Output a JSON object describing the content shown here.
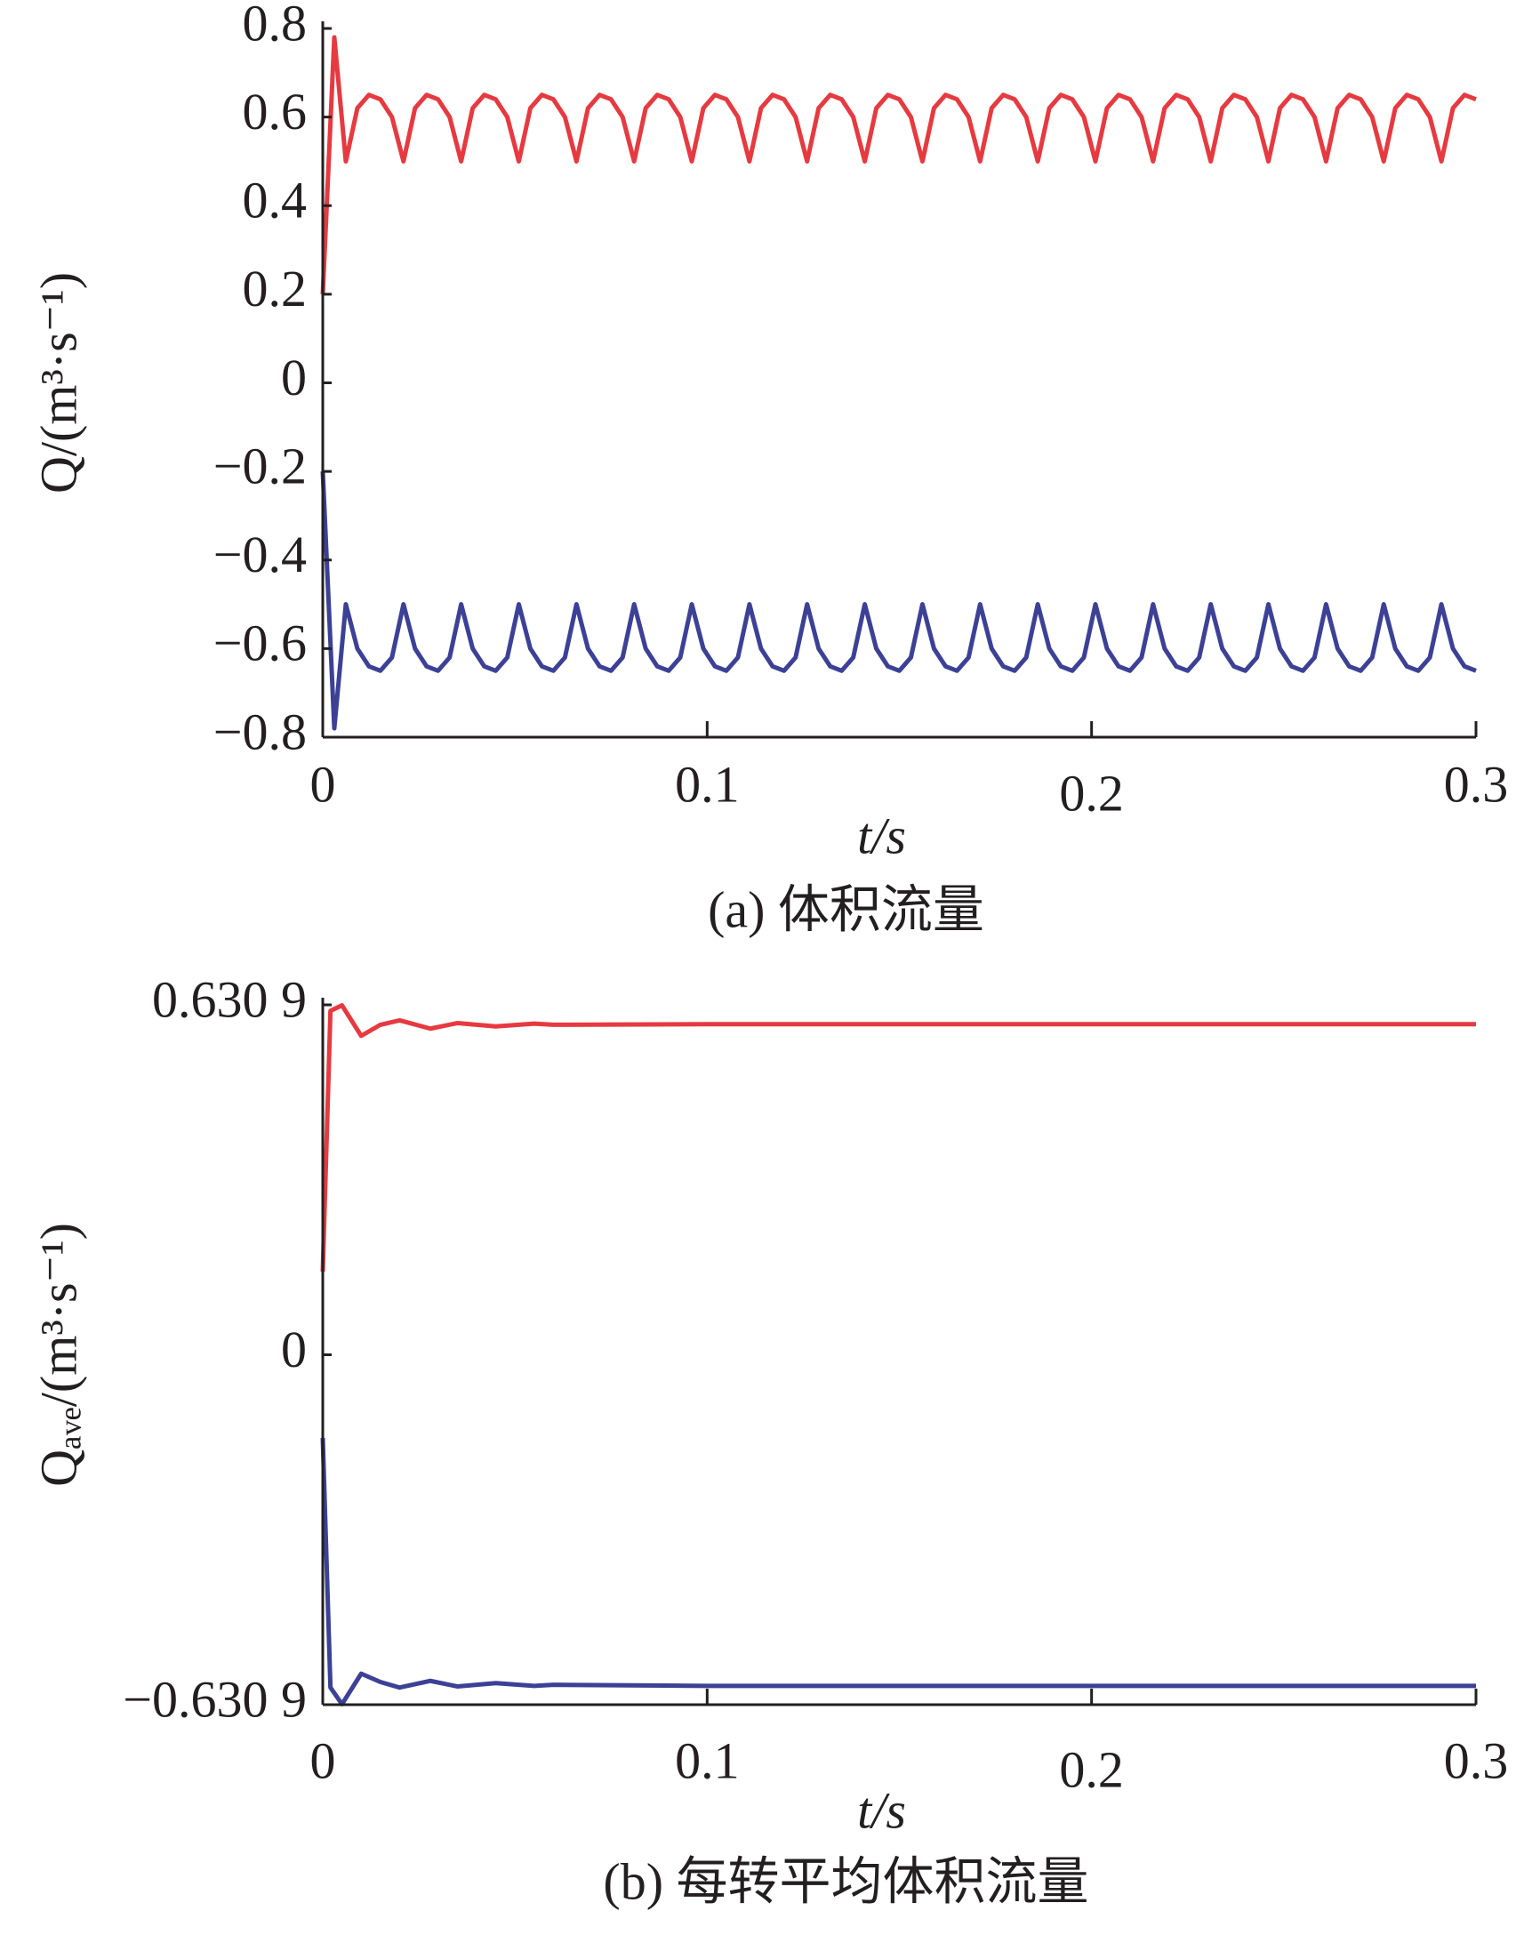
{
  "chart_data": [
    {
      "type": "line",
      "ylabel": "Q/(m³·s⁻¹)",
      "xlabel": "t/s",
      "caption": "(a)  体积流量",
      "xlim": [
        0,
        0.3
      ],
      "ylim": [
        -0.8,
        0.8
      ],
      "xticks": [
        0,
        0.1,
        0.2,
        0.3
      ],
      "yticks": [
        {
          "value": -0.8,
          "label": "−0.8"
        },
        {
          "value": -0.6,
          "label": "−0.6"
        },
        {
          "value": -0.4,
          "label": "−0.4"
        },
        {
          "value": -0.2,
          "label": "−0.2"
        },
        0,
        0.2,
        0.4,
        0.6,
        0.8
      ],
      "x": [
        0,
        0.003,
        0.006,
        0.009,
        0.012,
        0.015,
        0.018,
        0.021,
        0.024,
        0.027,
        0.03,
        0.033,
        0.036,
        0.039,
        0.042,
        0.045,
        0.048,
        0.051,
        0.054,
        0.057,
        0.06,
        0.063,
        0.066,
        0.069,
        0.072,
        0.075,
        0.078,
        0.081,
        0.084,
        0.087,
        0.09,
        0.093,
        0.096,
        0.099,
        0.102,
        0.105,
        0.108,
        0.111,
        0.114,
        0.117,
        0.12,
        0.123,
        0.126,
        0.129,
        0.132,
        0.135,
        0.138,
        0.141,
        0.144,
        0.147,
        0.15,
        0.153,
        0.156,
        0.159,
        0.162,
        0.165,
        0.168,
        0.171,
        0.174,
        0.177,
        0.18,
        0.183,
        0.186,
        0.189,
        0.192,
        0.195,
        0.198,
        0.201,
        0.204,
        0.207,
        0.21,
        0.213,
        0.216,
        0.219,
        0.222,
        0.225,
        0.228,
        0.231,
        0.234,
        0.237,
        0.24,
        0.243,
        0.246,
        0.249,
        0.252,
        0.255,
        0.258,
        0.261,
        0.264,
        0.267,
        0.27,
        0.273,
        0.276,
        0.279,
        0.282,
        0.285,
        0.288,
        0.291,
        0.294,
        0.297,
        0.3
      ],
      "series": [
        {
          "color": "#e63a40",
          "values": [
            0.2,
            0.78,
            0.5,
            0.62,
            0.65,
            0.64,
            0.6,
            0.5,
            0.62,
            0.65,
            0.64,
            0.6,
            0.5,
            0.62,
            0.65,
            0.64,
            0.6,
            0.5,
            0.62,
            0.65,
            0.64,
            0.6,
            0.5,
            0.62,
            0.65,
            0.64,
            0.6,
            0.5,
            0.62,
            0.65,
            0.64,
            0.6,
            0.5,
            0.62,
            0.65,
            0.64,
            0.6,
            0.5,
            0.62,
            0.65,
            0.64,
            0.6,
            0.5,
            0.62,
            0.65,
            0.64,
            0.6,
            0.5,
            0.62,
            0.65,
            0.64,
            0.6,
            0.5,
            0.62,
            0.65,
            0.64,
            0.6,
            0.5,
            0.62,
            0.65,
            0.64,
            0.6,
            0.5,
            0.62,
            0.65,
            0.64,
            0.6,
            0.5,
            0.62,
            0.65,
            0.64,
            0.6,
            0.5,
            0.62,
            0.65,
            0.64,
            0.6,
            0.5,
            0.62,
            0.65,
            0.64,
            0.6,
            0.5,
            0.62,
            0.65,
            0.64,
            0.6,
            0.5,
            0.62,
            0.65,
            0.64,
            0.6,
            0.5,
            0.62,
            0.65,
            0.64,
            0.6,
            0.5,
            0.62,
            0.65,
            0.64
          ]
        },
        {
          "color": "#3c4196",
          "values": [
            -0.2,
            -0.78,
            -0.5,
            -0.6,
            -0.64,
            -0.65,
            -0.62,
            -0.5,
            -0.6,
            -0.64,
            -0.65,
            -0.62,
            -0.5,
            -0.6,
            -0.64,
            -0.65,
            -0.62,
            -0.5,
            -0.6,
            -0.64,
            -0.65,
            -0.62,
            -0.5,
            -0.6,
            -0.64,
            -0.65,
            -0.62,
            -0.5,
            -0.6,
            -0.64,
            -0.65,
            -0.62,
            -0.5,
            -0.6,
            -0.64,
            -0.65,
            -0.62,
            -0.5,
            -0.6,
            -0.64,
            -0.65,
            -0.62,
            -0.5,
            -0.6,
            -0.64,
            -0.65,
            -0.62,
            -0.5,
            -0.6,
            -0.64,
            -0.65,
            -0.62,
            -0.5,
            -0.6,
            -0.64,
            -0.65,
            -0.62,
            -0.5,
            -0.6,
            -0.64,
            -0.65,
            -0.62,
            -0.5,
            -0.6,
            -0.64,
            -0.65,
            -0.62,
            -0.5,
            -0.6,
            -0.64,
            -0.65,
            -0.62,
            -0.5,
            -0.6,
            -0.64,
            -0.65,
            -0.62,
            -0.5,
            -0.6,
            -0.64,
            -0.65,
            -0.62,
            -0.5,
            -0.6,
            -0.64,
            -0.65,
            -0.62,
            -0.5,
            -0.6,
            -0.64,
            -0.65,
            -0.62,
            -0.5,
            -0.6,
            -0.64,
            -0.65,
            -0.62,
            -0.5,
            -0.6,
            -0.64,
            -0.65
          ]
        }
      ]
    },
    {
      "type": "line",
      "ylabel": "Qₐᵥₑ/(m³·s⁻¹)",
      "xlabel": "t/s",
      "caption": "(b)  每转平均体积流量",
      "xlim": [
        0,
        0.3
      ],
      "ylim": [
        -0.6309,
        0.6309
      ],
      "xticks": [
        0,
        0.1,
        0.2,
        0.3
      ],
      "yticks": [
        {
          "value": -0.6309,
          "label": "−0.630 9"
        },
        0,
        {
          "value": 0.6309,
          "label": "0.630 9"
        }
      ],
      "x": [
        0,
        0.002,
        0.005,
        0.01,
        0.015,
        0.02,
        0.028,
        0.035,
        0.045,
        0.055,
        0.06,
        0.1,
        0.2,
        0.3
      ],
      "series": [
        {
          "color": "#e63a40",
          "values": [
            0.15,
            0.62,
            0.63,
            0.575,
            0.595,
            0.603,
            0.588,
            0.598,
            0.592,
            0.597,
            0.595,
            0.596,
            0.596,
            0.596
          ]
        },
        {
          "color": "#3c4196",
          "values": [
            -0.15,
            -0.6,
            -0.63,
            -0.575,
            -0.59,
            -0.6,
            -0.588,
            -0.598,
            -0.592,
            -0.597,
            -0.595,
            -0.597,
            -0.597,
            -0.597
          ]
        }
      ]
    }
  ]
}
